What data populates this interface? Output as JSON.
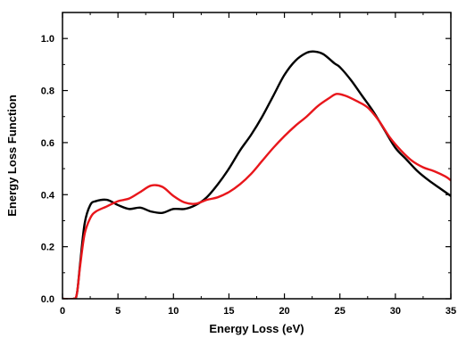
{
  "chart_data": {
    "type": "line",
    "title": "",
    "xlabel": "Energy Loss (eV)",
    "ylabel": "Energy Loss Function",
    "xlim": [
      0,
      35
    ],
    "ylim": [
      0,
      1.1
    ],
    "xticks": [
      0,
      5,
      10,
      15,
      20,
      25,
      30,
      35
    ],
    "yticks": [
      0.0,
      0.2,
      0.4,
      0.6,
      0.8,
      1.0
    ],
    "xtick_labels": [
      "0",
      "5",
      "10",
      "15",
      "20",
      "25",
      "30",
      "35"
    ],
    "ytick_labels": [
      "0.0",
      "0.2",
      "0.4",
      "0.6",
      "0.8",
      "1.0"
    ],
    "grid": false,
    "legend": "none",
    "series": [
      {
        "color": "#000000",
        "points": [
          [
            0,
            0
          ],
          [
            1.0,
            0
          ],
          [
            1.3,
            0.02
          ],
          [
            1.6,
            0.14
          ],
          [
            2.0,
            0.29
          ],
          [
            2.5,
            0.36
          ],
          [
            3.0,
            0.375
          ],
          [
            4.0,
            0.38
          ],
          [
            5.0,
            0.36
          ],
          [
            6.0,
            0.345
          ],
          [
            7.0,
            0.35
          ],
          [
            8.0,
            0.335
          ],
          [
            9.0,
            0.33
          ],
          [
            10.0,
            0.345
          ],
          [
            11.0,
            0.345
          ],
          [
            12.0,
            0.36
          ],
          [
            13.0,
            0.39
          ],
          [
            14.0,
            0.44
          ],
          [
            15.0,
            0.5
          ],
          [
            16.0,
            0.57
          ],
          [
            17.0,
            0.63
          ],
          [
            18.0,
            0.7
          ],
          [
            19.0,
            0.78
          ],
          [
            20.0,
            0.86
          ],
          [
            21.0,
            0.915
          ],
          [
            22.0,
            0.945
          ],
          [
            22.7,
            0.95
          ],
          [
            23.5,
            0.94
          ],
          [
            24.5,
            0.905
          ],
          [
            25.0,
            0.89
          ],
          [
            26.0,
            0.84
          ],
          [
            27.0,
            0.78
          ],
          [
            28.0,
            0.72
          ],
          [
            29.0,
            0.65
          ],
          [
            30.0,
            0.58
          ],
          [
            31.0,
            0.535
          ],
          [
            32.0,
            0.49
          ],
          [
            33.0,
            0.455
          ],
          [
            34.0,
            0.425
          ],
          [
            35.0,
            0.395
          ]
        ]
      },
      {
        "color": "#e8161b",
        "points": [
          [
            0,
            0
          ],
          [
            1.0,
            0
          ],
          [
            1.3,
            0.02
          ],
          [
            1.6,
            0.13
          ],
          [
            2.0,
            0.25
          ],
          [
            2.5,
            0.31
          ],
          [
            3.0,
            0.335
          ],
          [
            4.0,
            0.355
          ],
          [
            5.0,
            0.375
          ],
          [
            6.0,
            0.385
          ],
          [
            7.0,
            0.41
          ],
          [
            8.0,
            0.435
          ],
          [
            9.0,
            0.43
          ],
          [
            10.0,
            0.395
          ],
          [
            11.0,
            0.37
          ],
          [
            12.0,
            0.365
          ],
          [
            13.0,
            0.38
          ],
          [
            14.0,
            0.39
          ],
          [
            15.0,
            0.41
          ],
          [
            16.0,
            0.44
          ],
          [
            17.0,
            0.48
          ],
          [
            18.0,
            0.53
          ],
          [
            19.0,
            0.58
          ],
          [
            20.0,
            0.625
          ],
          [
            21.0,
            0.665
          ],
          [
            22.0,
            0.7
          ],
          [
            23.0,
            0.74
          ],
          [
            24.0,
            0.77
          ],
          [
            24.7,
            0.787
          ],
          [
            25.5,
            0.78
          ],
          [
            26.5,
            0.76
          ],
          [
            27.5,
            0.735
          ],
          [
            28.5,
            0.685
          ],
          [
            29.5,
            0.62
          ],
          [
            30.5,
            0.57
          ],
          [
            31.5,
            0.53
          ],
          [
            32.5,
            0.505
          ],
          [
            33.5,
            0.49
          ],
          [
            34.5,
            0.47
          ],
          [
            35.0,
            0.455
          ]
        ]
      }
    ]
  }
}
